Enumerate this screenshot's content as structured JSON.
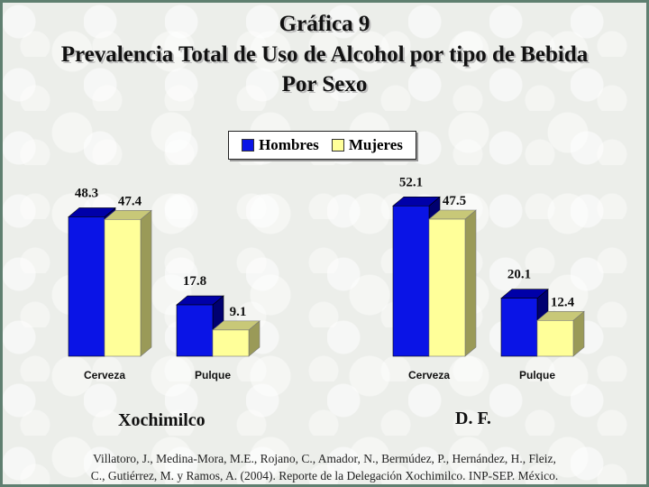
{
  "title": {
    "line1": "Gráfica 9",
    "line2": "Prevalencia Total de Uso de Alcohol por tipo de Bebida",
    "line3": "Por Sexo"
  },
  "legend": {
    "items": [
      {
        "label": "Hombres",
        "color": "#0a14e6"
      },
      {
        "label": "Mujeres",
        "color": "#ffff99"
      }
    ]
  },
  "chart_data": [
    {
      "type": "bar",
      "title": "Xochimilco",
      "categories": [
        "Cerveza",
        "Pulque"
      ],
      "series": [
        {
          "name": "Hombres",
          "values": [
            48.3,
            17.8
          ]
        },
        {
          "name": "Mujeres",
          "values": [
            47.4,
            9.1
          ]
        }
      ],
      "ylim": [
        0,
        60
      ],
      "grid": false,
      "style": "3d"
    },
    {
      "type": "bar",
      "title": "D. F.",
      "categories": [
        "Cerveza",
        "Pulque"
      ],
      "series": [
        {
          "name": "Hombres",
          "values": [
            52.1,
            20.1
          ]
        },
        {
          "name": "Mujeres",
          "values": [
            47.5,
            12.4
          ]
        }
      ],
      "ylim": [
        0,
        60
      ],
      "grid": false,
      "style": "3d"
    }
  ],
  "citation": {
    "line1": "Villatoro, J., Medina-Mora, M.E., Rojano, C., Amador, N., Bermúdez, P., Hernández, H., Fleiz,",
    "line2": "C., Gutiérrez, M. y Ramos, A. (2004). Reporte de la Delegación Xochimilco. INP-SEP. México."
  }
}
